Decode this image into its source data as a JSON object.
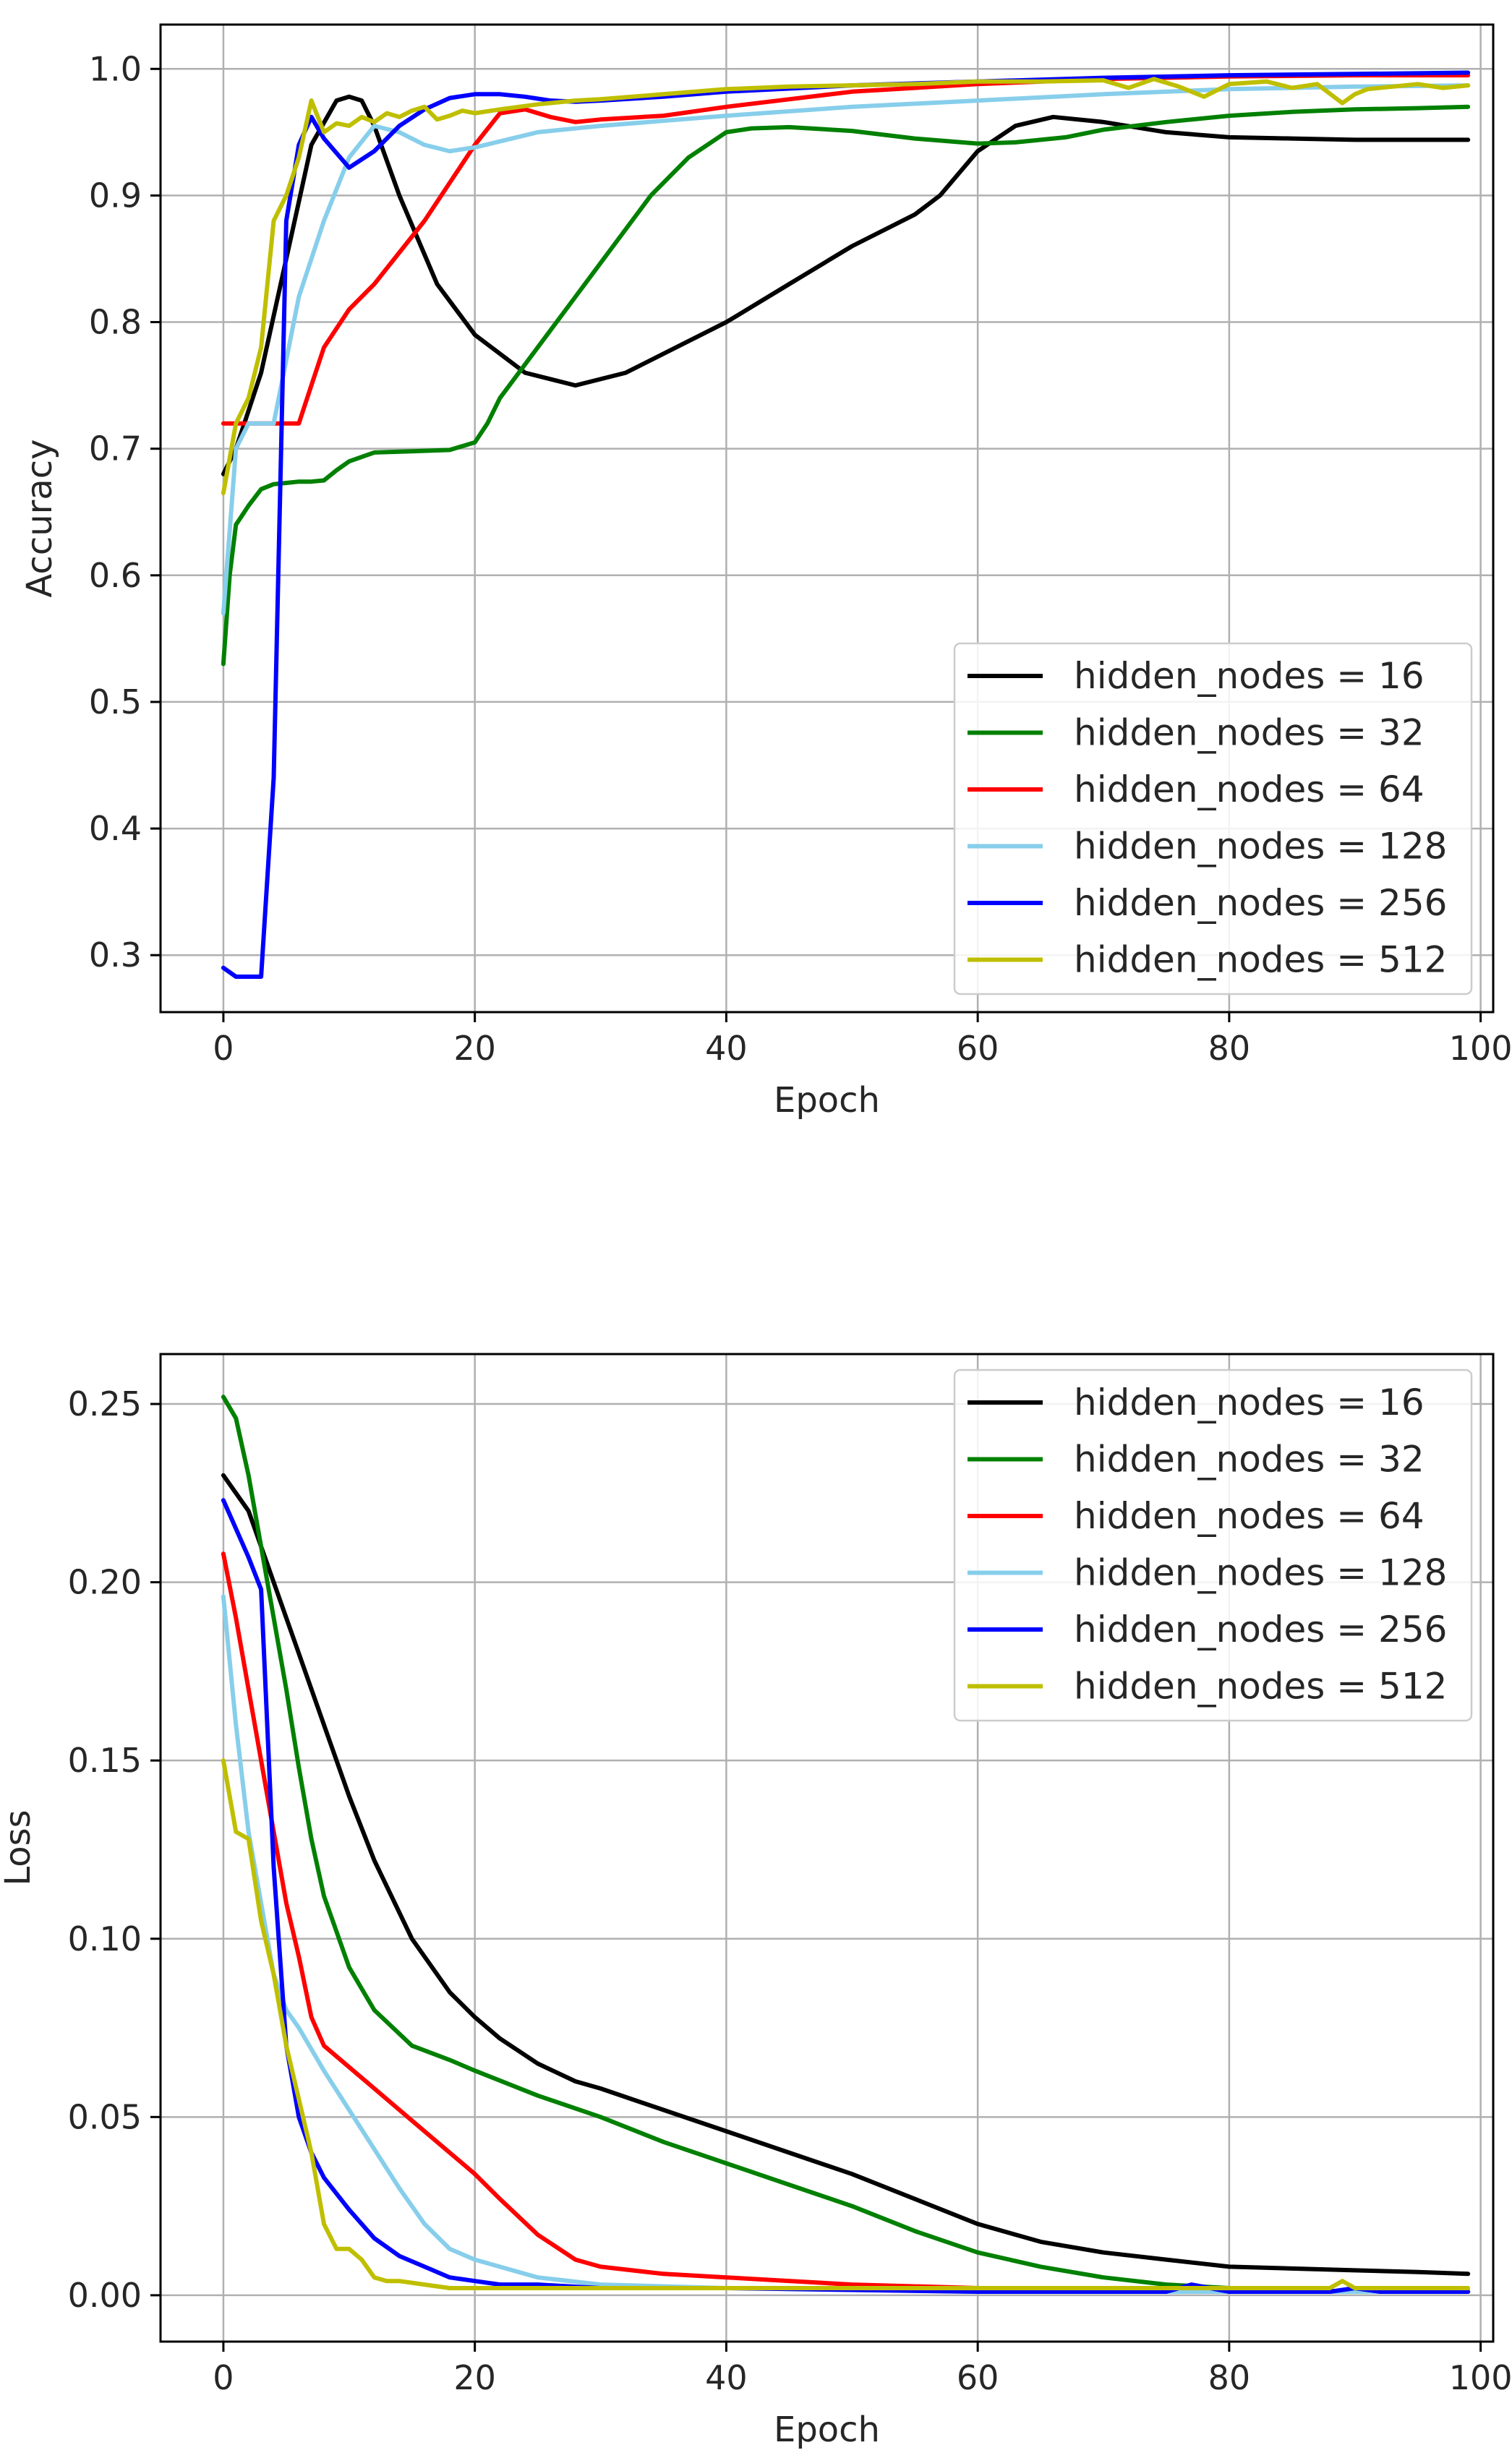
{
  "chart_data": [
    {
      "type": "line",
      "xlabel": "Epoch",
      "ylabel": "Accuracy",
      "xlim": [
        -5,
        101
      ],
      "ylim": [
        0.255,
        1.035
      ],
      "xticks": [
        0,
        20,
        40,
        60,
        80,
        100
      ],
      "yticks": [
        0.3,
        0.4,
        0.5,
        0.6,
        0.7,
        0.8,
        0.9,
        1.0
      ],
      "ytick_format": 1,
      "grid": true,
      "legend_position": "lower-right",
      "series": [
        {
          "name": "hidden_nodes = 16",
          "color": "#000000",
          "x": [
            0,
            1,
            3,
            5,
            7,
            9,
            10,
            11,
            12,
            14,
            17,
            20,
            24,
            28,
            32,
            36,
            40,
            45,
            50,
            55,
            57,
            60,
            63,
            66,
            70,
            75,
            80,
            85,
            90,
            95,
            99
          ],
          "y": [
            0.68,
            0.7,
            0.76,
            0.85,
            0.94,
            0.975,
            0.978,
            0.975,
            0.955,
            0.9,
            0.83,
            0.79,
            0.76,
            0.75,
            0.76,
            0.78,
            0.8,
            0.83,
            0.86,
            0.885,
            0.9,
            0.935,
            0.955,
            0.962,
            0.958,
            0.95,
            0.946,
            0.945,
            0.944,
            0.944,
            0.944
          ]
        },
        {
          "name": "hidden_nodes = 32",
          "color": "#008000",
          "x": [
            0,
            0.5,
            1,
            2,
            3,
            4,
            5,
            6,
            7,
            8,
            9,
            10,
            12,
            15,
            18,
            20,
            21,
            22,
            25,
            28,
            31,
            34,
            37,
            40,
            42,
            45,
            50,
            55,
            60,
            63,
            67,
            70,
            75,
            80,
            85,
            90,
            95,
            99
          ],
          "y": [
            0.53,
            0.6,
            0.64,
            0.655,
            0.668,
            0.672,
            0.673,
            0.674,
            0.674,
            0.675,
            0.683,
            0.69,
            0.697,
            0.698,
            0.699,
            0.705,
            0.72,
            0.74,
            0.78,
            0.82,
            0.86,
            0.9,
            0.93,
            0.95,
            0.953,
            0.954,
            0.951,
            0.945,
            0.941,
            0.942,
            0.946,
            0.952,
            0.958,
            0.963,
            0.966,
            0.968,
            0.969,
            0.97
          ]
        },
        {
          "name": "hidden_nodes = 64",
          "color": "#ff0000",
          "x": [
            0,
            1,
            2,
            3,
            4,
            5,
            6,
            7,
            8,
            10,
            12,
            14,
            16,
            18,
            20,
            22,
            24,
            26,
            28,
            30,
            35,
            40,
            45,
            50,
            60,
            70,
            80,
            90,
            99
          ],
          "y": [
            0.72,
            0.72,
            0.72,
            0.72,
            0.72,
            0.72,
            0.72,
            0.75,
            0.78,
            0.81,
            0.83,
            0.855,
            0.88,
            0.91,
            0.94,
            0.965,
            0.968,
            0.962,
            0.958,
            0.96,
            0.963,
            0.97,
            0.976,
            0.982,
            0.988,
            0.992,
            0.994,
            0.995,
            0.995
          ]
        },
        {
          "name": "hidden_nodes = 128",
          "color": "#87ceeb",
          "x": [
            0,
            1,
            2,
            3,
            4,
            5,
            6,
            8,
            10,
            12,
            14,
            16,
            18,
            20,
            25,
            30,
            40,
            50,
            60,
            70,
            80,
            90,
            99
          ],
          "y": [
            0.57,
            0.7,
            0.72,
            0.72,
            0.72,
            0.77,
            0.82,
            0.88,
            0.93,
            0.955,
            0.95,
            0.94,
            0.935,
            0.938,
            0.95,
            0.955,
            0.963,
            0.97,
            0.975,
            0.98,
            0.984,
            0.986,
            0.987
          ]
        },
        {
          "name": "hidden_nodes = 256",
          "color": "#0000ff",
          "x": [
            0,
            1,
            2,
            3,
            4,
            5,
            6,
            7,
            8,
            10,
            12,
            14,
            16,
            18,
            20,
            22,
            24,
            26,
            28,
            30,
            35,
            40,
            50,
            60,
            70,
            80,
            90,
            99
          ],
          "y": [
            0.29,
            0.283,
            0.283,
            0.283,
            0.44,
            0.88,
            0.94,
            0.962,
            0.945,
            0.922,
            0.935,
            0.955,
            0.968,
            0.977,
            0.98,
            0.98,
            0.978,
            0.975,
            0.974,
            0.975,
            0.978,
            0.982,
            0.987,
            0.99,
            0.993,
            0.995,
            0.996,
            0.997
          ]
        },
        {
          "name": "hidden_nodes = 512",
          "color": "#bfbf00",
          "x": [
            0,
            1,
            2,
            3,
            4,
            5,
            6,
            7,
            8,
            9,
            10,
            11,
            12,
            13,
            14,
            15,
            16,
            17,
            18,
            19,
            20,
            22,
            25,
            28,
            30,
            35,
            40,
            45,
            50,
            55,
            60,
            65,
            70,
            72,
            74,
            76,
            78,
            80,
            83,
            85,
            87,
            89,
            90,
            91,
            93,
            95,
            97,
            99
          ],
          "y": [
            0.665,
            0.72,
            0.74,
            0.78,
            0.88,
            0.9,
            0.93,
            0.975,
            0.95,
            0.957,
            0.955,
            0.962,
            0.958,
            0.965,
            0.962,
            0.967,
            0.97,
            0.96,
            0.963,
            0.967,
            0.965,
            0.968,
            0.972,
            0.975,
            0.976,
            0.98,
            0.984,
            0.986,
            0.987,
            0.988,
            0.99,
            0.99,
            0.991,
            0.985,
            0.992,
            0.986,
            0.978,
            0.988,
            0.99,
            0.985,
            0.988,
            0.973,
            0.98,
            0.984,
            0.986,
            0.988,
            0.985,
            0.987
          ]
        }
      ]
    },
    {
      "type": "line",
      "xlabel": "Epoch",
      "ylabel": "Loss",
      "xlim": [
        -5,
        101
      ],
      "ylim": [
        -0.013,
        0.264
      ],
      "xticks": [
        0,
        20,
        40,
        60,
        80,
        100
      ],
      "yticks": [
        0.0,
        0.05,
        0.1,
        0.15,
        0.2,
        0.25
      ],
      "ytick_format": 2,
      "grid": true,
      "legend_position": "upper-right",
      "series": [
        {
          "name": "hidden_nodes = 16",
          "color": "#000000",
          "x": [
            0,
            2,
            4,
            6,
            8,
            10,
            12,
            15,
            18,
            20,
            22,
            25,
            28,
            30,
            35,
            40,
            45,
            50,
            55,
            60,
            65,
            70,
            75,
            80,
            85,
            90,
            95,
            99
          ],
          "y": [
            0.23,
            0.22,
            0.2,
            0.18,
            0.16,
            0.14,
            0.122,
            0.1,
            0.085,
            0.078,
            0.072,
            0.065,
            0.06,
            0.058,
            0.052,
            0.046,
            0.04,
            0.034,
            0.027,
            0.02,
            0.015,
            0.012,
            0.01,
            0.008,
            0.0075,
            0.007,
            0.0065,
            0.006
          ]
        },
        {
          "name": "hidden_nodes = 32",
          "color": "#008000",
          "x": [
            0,
            1,
            2,
            3,
            4,
            5,
            6,
            7,
            8,
            10,
            12,
            15,
            18,
            20,
            25,
            30,
            35,
            40,
            45,
            50,
            55,
            60,
            65,
            70,
            75,
            80,
            85,
            90,
            95,
            99
          ],
          "y": [
            0.252,
            0.246,
            0.23,
            0.21,
            0.19,
            0.17,
            0.148,
            0.128,
            0.112,
            0.092,
            0.08,
            0.07,
            0.066,
            0.063,
            0.056,
            0.05,
            0.043,
            0.037,
            0.031,
            0.025,
            0.018,
            0.012,
            0.008,
            0.005,
            0.003,
            0.002,
            0.0015,
            0.001,
            0.001,
            0.001
          ]
        },
        {
          "name": "hidden_nodes = 64",
          "color": "#ff0000",
          "x": [
            0,
            1,
            2,
            3,
            4,
            5,
            6,
            7,
            8,
            10,
            12,
            15,
            18,
            20,
            22,
            25,
            28,
            30,
            35,
            40,
            50,
            60,
            70,
            80,
            90,
            99
          ],
          "y": [
            0.208,
            0.19,
            0.17,
            0.15,
            0.13,
            0.11,
            0.095,
            0.078,
            0.07,
            0.064,
            0.058,
            0.049,
            0.04,
            0.034,
            0.027,
            0.017,
            0.01,
            0.008,
            0.006,
            0.005,
            0.003,
            0.002,
            0.0015,
            0.001,
            0.001,
            0.001
          ]
        },
        {
          "name": "hidden_nodes = 128",
          "color": "#87ceeb",
          "x": [
            0,
            1,
            2,
            3,
            4,
            5,
            6,
            8,
            10,
            12,
            14,
            16,
            18,
            20,
            25,
            30,
            40,
            50,
            60,
            80,
            99
          ],
          "y": [
            0.196,
            0.16,
            0.13,
            0.11,
            0.09,
            0.08,
            0.075,
            0.063,
            0.052,
            0.041,
            0.03,
            0.02,
            0.013,
            0.01,
            0.005,
            0.003,
            0.002,
            0.0015,
            0.001,
            0.001,
            0.001
          ]
        },
        {
          "name": "hidden_nodes = 256",
          "color": "#0000ff",
          "x": [
            0,
            1,
            2,
            3,
            4,
            5,
            6,
            7,
            8,
            10,
            12,
            14,
            16,
            18,
            20,
            22,
            25,
            30,
            40,
            50,
            60,
            75,
            77,
            80,
            88,
            90,
            92,
            95,
            99
          ],
          "y": [
            0.223,
            0.215,
            0.207,
            0.198,
            0.12,
            0.07,
            0.05,
            0.04,
            0.033,
            0.024,
            0.016,
            0.011,
            0.008,
            0.005,
            0.004,
            0.003,
            0.003,
            0.002,
            0.002,
            0.0015,
            0.001,
            0.001,
            0.003,
            0.001,
            0.001,
            0.002,
            0.001,
            0.001,
            0.001
          ]
        },
        {
          "name": "hidden_nodes = 512",
          "color": "#bfbf00",
          "x": [
            0,
            1,
            2,
            3,
            4,
            5,
            6,
            7,
            8,
            9,
            10,
            11,
            12,
            13,
            14,
            16,
            18,
            20,
            25,
            30,
            40,
            50,
            60,
            70,
            80,
            85,
            88,
            89,
            90,
            92,
            95,
            99
          ],
          "y": [
            0.15,
            0.13,
            0.128,
            0.105,
            0.09,
            0.07,
            0.055,
            0.04,
            0.02,
            0.013,
            0.013,
            0.01,
            0.005,
            0.004,
            0.004,
            0.003,
            0.002,
            0.002,
            0.002,
            0.002,
            0.002,
            0.002,
            0.002,
            0.002,
            0.002,
            0.002,
            0.002,
            0.004,
            0.002,
            0.002,
            0.002,
            0.002
          ]
        }
      ]
    }
  ]
}
